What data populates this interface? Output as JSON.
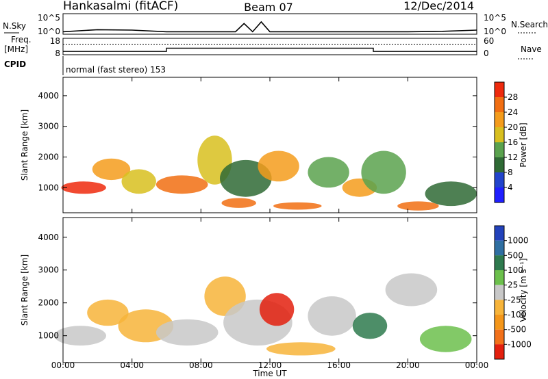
{
  "header": {
    "station": "Hankasalmi (fitACF)",
    "beam": "Beam 07",
    "date": "12/Dec/2014"
  },
  "noise_panel": {
    "left_label": "N.Sky",
    "right_label": "N.Search",
    "ticks": [
      "10^5",
      "10^0"
    ]
  },
  "freq_panel": {
    "label_line1": "Freq.",
    "label_line2": "[MHz]",
    "left_ticks": [
      "18",
      "8"
    ],
    "right_ticks": [
      "60",
      "0"
    ],
    "right_label": "Nave"
  },
  "cpid": {
    "label": "CPID",
    "text": "normal (fast stereo) 153"
  },
  "power_panel": {
    "ylabel": "Slant Range [km]",
    "yticks": [
      "4000",
      "3000",
      "2000",
      "1000"
    ],
    "colorbar_label": "Power [dB]",
    "colorbar_ticks": [
      "28",
      "24",
      "20",
      "16",
      "12",
      "8",
      "4"
    ],
    "colors": [
      "#1f1fff",
      "#2244cc",
      "#2f6a35",
      "#5aa24e",
      "#d8bf1f",
      "#f49c1c",
      "#f16e12",
      "#ee2a0d"
    ]
  },
  "velocity_panel": {
    "ylabel": "Slant Range [km]",
    "yticks": [
      "4000",
      "3000",
      "2000",
      "1000"
    ],
    "colorbar_label": "Velocity [m s⁻¹]",
    "colorbar_ticks": [
      "1000",
      "500",
      "100",
      "25",
      "-25",
      "-100",
      "-500",
      "-1000"
    ],
    "colors": [
      "#2242bb",
      "#2f6fa2",
      "#2e7a4e",
      "#6cc04c",
      "#c8c8c8",
      "#f7b43a",
      "#f4961a",
      "#f2711a",
      "#e3200e"
    ]
  },
  "xaxis": {
    "ticks": [
      "00:00",
      "04:00",
      "08:00",
      "12:00",
      "16:00",
      "20:00",
      "00:00"
    ],
    "label": "Time UT"
  },
  "chart_data": [
    {
      "type": "line",
      "name": "noise",
      "x_hours": [
        0,
        2,
        4,
        6,
        8,
        10,
        10.5,
        11,
        11.5,
        12,
        14,
        16,
        18,
        20,
        22,
        24
      ],
      "y_log10": [
        0.6,
        1.1,
        1.0,
        0.6,
        0.6,
        0.6,
        2.6,
        0.6,
        3.0,
        0.6,
        0.6,
        0.6,
        0.6,
        0.6,
        0.7,
        1.0
      ],
      "ylim_log10": [
        0,
        5
      ]
    },
    {
      "type": "line",
      "name": "frequency",
      "x_hours": [
        0,
        6,
        6,
        18,
        18,
        24
      ],
      "y_mhz": [
        10,
        10,
        12,
        12,
        10,
        10
      ],
      "ylim": [
        8,
        18
      ]
    },
    {
      "type": "heatmap",
      "name": "power",
      "x_range_hours": [
        0,
        24
      ],
      "y_range_km": [
        180,
        4600
      ],
      "clim_db": [
        0,
        32
      ],
      "blobs": [
        {
          "t": 1.2,
          "r": 1000,
          "dt": 1.3,
          "dr": 200,
          "v": 29
        },
        {
          "t": 2.8,
          "r": 1600,
          "dt": 1.1,
          "dr": 350,
          "v": 22
        },
        {
          "t": 4.4,
          "r": 1200,
          "dt": 1.0,
          "dr": 400,
          "v": 17
        },
        {
          "t": 6.9,
          "r": 1100,
          "dt": 1.5,
          "dr": 300,
          "v": 26
        },
        {
          "t": 8.8,
          "r": 1900,
          "dt": 1.0,
          "dr": 800,
          "v": 18
        },
        {
          "t": 10.6,
          "r": 1300,
          "dt": 1.5,
          "dr": 600,
          "v": 10
        },
        {
          "t": 10.2,
          "r": 500,
          "dt": 1.0,
          "dr": 160,
          "v": 27
        },
        {
          "t": 12.5,
          "r": 1700,
          "dt": 1.2,
          "dr": 500,
          "v": 22
        },
        {
          "t": 13.6,
          "r": 400,
          "dt": 1.4,
          "dr": 120,
          "v": 27
        },
        {
          "t": 15.4,
          "r": 1500,
          "dt": 1.2,
          "dr": 500,
          "v": 14
        },
        {
          "t": 17.2,
          "r": 1000,
          "dt": 1.0,
          "dr": 300,
          "v": 20
        },
        {
          "t": 18.6,
          "r": 1500,
          "dt": 1.3,
          "dr": 700,
          "v": 12
        },
        {
          "t": 20.6,
          "r": 400,
          "dt": 1.2,
          "dr": 150,
          "v": 27
        },
        {
          "t": 22.5,
          "r": 800,
          "dt": 1.5,
          "dr": 400,
          "v": 10
        }
      ]
    },
    {
      "type": "heatmap",
      "name": "velocity",
      "x_range_hours": [
        0,
        24
      ],
      "y_range_km": [
        180,
        4600
      ],
      "clim_ms": [
        -1000,
        1000
      ],
      "blobs": [
        {
          "t": 1.0,
          "r": 1000,
          "dt": 1.5,
          "dr": 300,
          "v": 0
        },
        {
          "t": 2.6,
          "r": 1700,
          "dt": 1.2,
          "dr": 400,
          "v": -200
        },
        {
          "t": 4.8,
          "r": 1300,
          "dt": 1.6,
          "dr": 500,
          "v": -150
        },
        {
          "t": 7.2,
          "r": 1100,
          "dt": 1.8,
          "dr": 400,
          "v": -5
        },
        {
          "t": 9.4,
          "r": 2200,
          "dt": 1.2,
          "dr": 600,
          "v": -120
        },
        {
          "t": 11.3,
          "r": 1400,
          "dt": 2.0,
          "dr": 700,
          "v": 5
        },
        {
          "t": 12.4,
          "r": 1800,
          "dt": 1.0,
          "dr": 500,
          "v": -800
        },
        {
          "t": 13.8,
          "r": 600,
          "dt": 2.0,
          "dr": 200,
          "v": -300
        },
        {
          "t": 15.6,
          "r": 1600,
          "dt": 1.4,
          "dr": 600,
          "v": 0
        },
        {
          "t": 17.8,
          "r": 1300,
          "dt": 1.0,
          "dr": 400,
          "v": 400
        },
        {
          "t": 20.2,
          "r": 2400,
          "dt": 1.5,
          "dr": 500,
          "v": 0
        },
        {
          "t": 22.2,
          "r": 900,
          "dt": 1.5,
          "dr": 400,
          "v": 150
        }
      ]
    }
  ]
}
